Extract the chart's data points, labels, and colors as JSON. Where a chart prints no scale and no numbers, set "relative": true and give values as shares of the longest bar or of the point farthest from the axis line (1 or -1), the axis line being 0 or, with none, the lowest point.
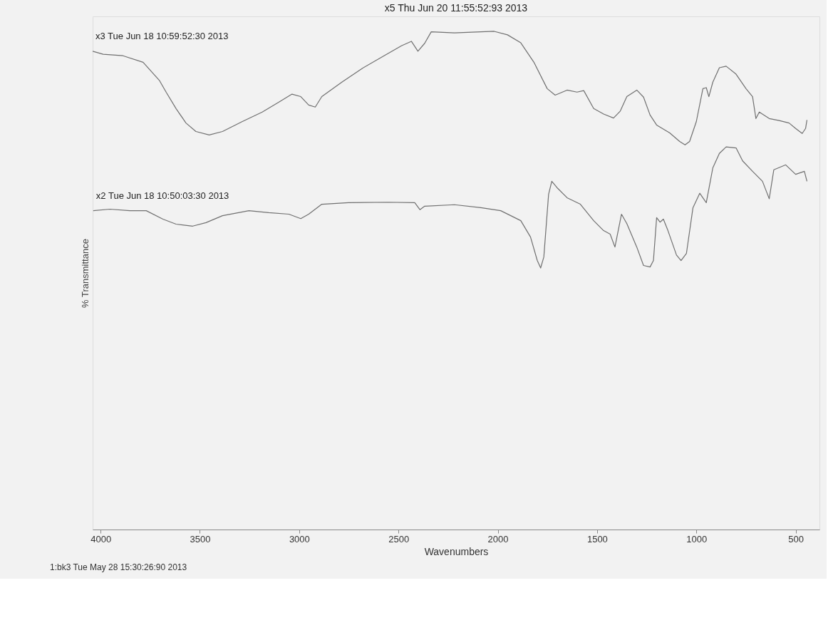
{
  "chart_data": {
    "type": "line",
    "title": "x5   Thu Jun 20 11:55:52:93 2013",
    "xlabel": "Wavenumbers",
    "ylabel": "% Transmittance",
    "relative": true,
    "grid": false,
    "marker": "none",
    "line_style": "solid",
    "xlim": [
      4040,
      380
    ],
    "xticks": [
      4000,
      3500,
      3000,
      2500,
      2000,
      1500,
      1000,
      500
    ],
    "annotations": [
      "1:bk3  Tue May 28 15:30:26:90 2013"
    ],
    "series": [
      {
        "name": "x3   Tue Jun 18 10:59:52:30 2013",
        "color": "#707070",
        "x": [
          4040,
          3987,
          3887,
          3786,
          3703,
          3670,
          3620,
          3570,
          3520,
          3453,
          3386,
          3286,
          3186,
          3102,
          3036,
          2992,
          2952,
          2919,
          2886,
          2785,
          2685,
          2585,
          2485,
          2435,
          2402,
          2368,
          2335,
          2218,
          2085,
          2018,
          1951,
          1884,
          1818,
          1751,
          1711,
          1651,
          1601,
          1567,
          1517,
          1467,
          1417,
          1383,
          1350,
          1300,
          1266,
          1233,
          1200,
          1134,
          1084,
          1057,
          1034,
          1000,
          967,
          950,
          937,
          917,
          884,
          850,
          800,
          750,
          717,
          700,
          683,
          633,
          583,
          533,
          500,
          467,
          450,
          443
        ],
        "values": [
          0.96,
          0.954,
          0.951,
          0.938,
          0.901,
          0.878,
          0.845,
          0.816,
          0.799,
          0.792,
          0.799,
          0.819,
          0.838,
          0.858,
          0.874,
          0.869,
          0.852,
          0.848,
          0.869,
          0.898,
          0.925,
          0.948,
          0.971,
          0.98,
          0.96,
          0.976,
          0.999,
          0.997,
          0.999,
          1.0,
          0.993,
          0.977,
          0.938,
          0.885,
          0.872,
          0.882,
          0.878,
          0.881,
          0.845,
          0.834,
          0.826,
          0.84,
          0.869,
          0.882,
          0.868,
          0.832,
          0.812,
          0.796,
          0.779,
          0.772,
          0.779,
          0.819,
          0.885,
          0.887,
          0.869,
          0.898,
          0.927,
          0.93,
          0.914,
          0.885,
          0.869,
          0.825,
          0.838,
          0.825,
          0.821,
          0.816,
          0.805,
          0.795,
          0.805,
          0.822
        ]
      },
      {
        "name": "x2   Tue Jun 18 10:50:03:30 2013",
        "color": "#707070",
        "x": [
          4037,
          3953,
          3853,
          3770,
          3686,
          3620,
          3536,
          3469,
          3386,
          3253,
          3153,
          3052,
          2992,
          2952,
          2886,
          2752,
          2552,
          2418,
          2392,
          2368,
          2218,
          2085,
          1985,
          1884,
          1835,
          1801,
          1784,
          1768,
          1744,
          1728,
          1701,
          1651,
          1584,
          1517,
          1467,
          1434,
          1410,
          1377,
          1350,
          1300,
          1266,
          1233,
          1216,
          1200,
          1183,
          1166,
          1143,
          1100,
          1077,
          1050,
          1017,
          983,
          950,
          917,
          884,
          850,
          800,
          767,
          717,
          667,
          633,
          610,
          550,
          500,
          456,
          443
        ],
        "values": [
          0.64,
          0.643,
          0.64,
          0.64,
          0.623,
          0.613,
          0.609,
          0.616,
          0.63,
          0.64,
          0.636,
          0.633,
          0.624,
          0.633,
          0.653,
          0.656,
          0.657,
          0.656,
          0.642,
          0.649,
          0.652,
          0.646,
          0.64,
          0.62,
          0.587,
          0.54,
          0.525,
          0.547,
          0.673,
          0.699,
          0.686,
          0.666,
          0.653,
          0.62,
          0.6,
          0.593,
          0.567,
          0.633,
          0.614,
          0.567,
          0.53,
          0.527,
          0.54,
          0.626,
          0.617,
          0.623,
          0.6,
          0.551,
          0.54,
          0.554,
          0.646,
          0.675,
          0.656,
          0.726,
          0.755,
          0.768,
          0.766,
          0.74,
          0.719,
          0.699,
          0.664,
          0.722,
          0.732,
          0.713,
          0.719,
          0.699
        ]
      }
    ]
  }
}
